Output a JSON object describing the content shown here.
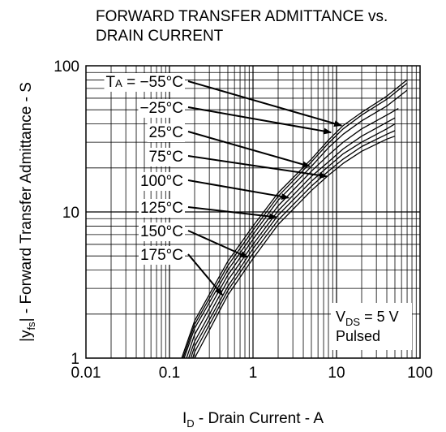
{
  "chart_data": {
    "type": "line",
    "title_lines": [
      "FORWARD TRANSFER ADMITTANCE vs.",
      "DRAIN CURRENT"
    ],
    "xlabel": {
      "main": "I",
      "sub": "D",
      "rest": " - Drain Current - A"
    },
    "ylabel": {
      "pre": "|y",
      "sub": "fs",
      "rest": "| - Forward Transfer Admittance - S"
    },
    "xscale": "log",
    "yscale": "log",
    "xlim": [
      0.01,
      100
    ],
    "ylim": [
      1,
      100
    ],
    "grid": true,
    "x_ticks": [
      "0.01",
      "0.1",
      "1",
      "10",
      "100"
    ],
    "y_ticks": [
      "1",
      "10",
      "100"
    ],
    "annotation": {
      "line1_main": "V",
      "line1_sub": "DS",
      "line1_rest": " = 5 V",
      "line2": "Pulsed"
    },
    "series": [
      {
        "name": "Tₐ = −55°C",
        "prefix": "T",
        "prefix_sub": "A",
        "temp": " = −55°C",
        "points": [
          [
            0.14,
            1
          ],
          [
            0.2,
            1.8
          ],
          [
            0.5,
            4.6
          ],
          [
            1,
            8
          ],
          [
            2,
            13.5
          ],
          [
            5,
            23
          ],
          [
            8,
            31
          ],
          [
            12,
            39
          ],
          [
            20,
            48
          ],
          [
            40,
            62
          ],
          [
            70,
            80
          ]
        ]
      },
      {
        "name": "−25°C",
        "temp": "−25°C",
        "points": [
          [
            0.145,
            1
          ],
          [
            0.2,
            1.7
          ],
          [
            0.5,
            4.3
          ],
          [
            1,
            7.5
          ],
          [
            2,
            12.8
          ],
          [
            5,
            22
          ],
          [
            8,
            29.5
          ],
          [
            12,
            37
          ],
          [
            20,
            46
          ],
          [
            40,
            59
          ],
          [
            70,
            76
          ]
        ]
      },
      {
        "name": "25°C",
        "temp": "25°C",
        "points": [
          [
            0.15,
            1
          ],
          [
            0.2,
            1.6
          ],
          [
            0.5,
            4
          ],
          [
            1,
            7
          ],
          [
            2,
            12
          ],
          [
            5,
            20.5
          ],
          [
            8,
            27.5
          ],
          [
            12,
            34
          ],
          [
            20,
            42
          ],
          [
            40,
            53
          ],
          [
            70,
            68
          ]
        ]
      },
      {
        "name": "75°C",
        "temp": "75°C",
        "points": [
          [
            0.16,
            1
          ],
          [
            0.2,
            1.45
          ],
          [
            0.5,
            3.7
          ],
          [
            1,
            6.5
          ],
          [
            2,
            11
          ],
          [
            5,
            19
          ],
          [
            8,
            24.5
          ],
          [
            12,
            30
          ],
          [
            20,
            37
          ],
          [
            40,
            46
          ],
          [
            55,
            51
          ]
        ]
      },
      {
        "name": "100°C",
        "temp": "100°C",
        "points": [
          [
            0.17,
            1
          ],
          [
            0.2,
            1.3
          ],
          [
            0.5,
            3.4
          ],
          [
            1,
            6
          ],
          [
            2,
            10.2
          ],
          [
            5,
            17.5
          ],
          [
            8,
            22
          ],
          [
            12,
            27
          ],
          [
            20,
            33
          ],
          [
            40,
            41
          ],
          [
            50,
            44
          ]
        ]
      },
      {
        "name": "125°C",
        "temp": "125°C",
        "points": [
          [
            0.18,
            1
          ],
          [
            0.2,
            1.2
          ],
          [
            0.5,
            3.1
          ],
          [
            1,
            5.6
          ],
          [
            2,
            9.5
          ],
          [
            5,
            16.2
          ],
          [
            8,
            20.5
          ],
          [
            12,
            25
          ],
          [
            20,
            30
          ],
          [
            40,
            37
          ],
          [
            50,
            40
          ]
        ]
      },
      {
        "name": "150°C",
        "temp": "150°C",
        "points": [
          [
            0.19,
            1
          ],
          [
            0.2,
            1.1
          ],
          [
            0.5,
            2.9
          ],
          [
            1,
            5.2
          ],
          [
            2,
            8.8
          ],
          [
            5,
            15
          ],
          [
            8,
            19
          ],
          [
            12,
            23
          ],
          [
            20,
            28
          ],
          [
            40,
            34
          ],
          [
            50,
            36
          ]
        ]
      },
      {
        "name": "175°C",
        "temp": "175°C",
        "points": [
          [
            0.2,
            1
          ],
          [
            0.5,
            2.7
          ],
          [
            1,
            4.8
          ],
          [
            2,
            8.2
          ],
          [
            5,
            14
          ],
          [
            8,
            17.8
          ],
          [
            12,
            21.5
          ],
          [
            20,
            26
          ],
          [
            40,
            31.5
          ],
          [
            50,
            33
          ]
        ]
      }
    ]
  }
}
